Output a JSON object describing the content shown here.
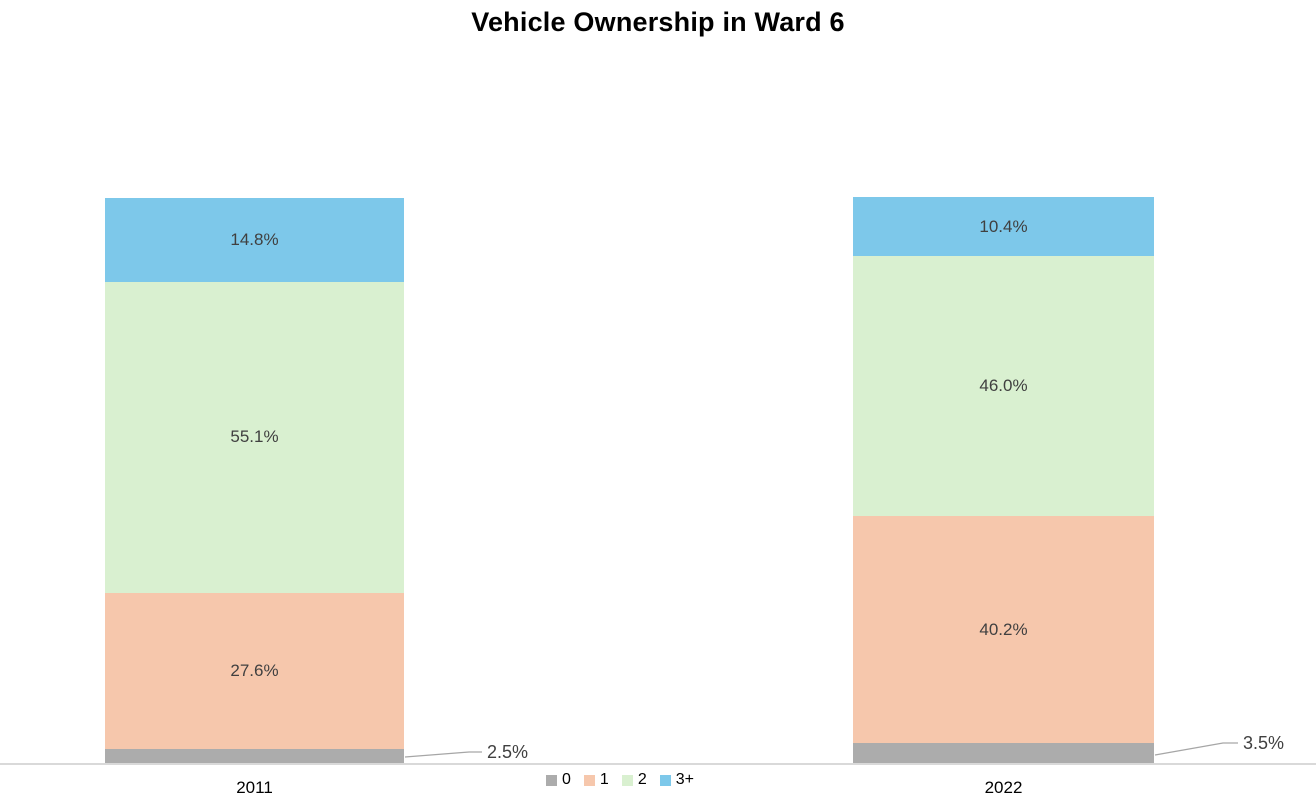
{
  "chart_data": {
    "type": "bar",
    "stacked": true,
    "title": "Vehicle Ownership in Ward 6",
    "categories": [
      "2011",
      "2022"
    ],
    "series": [
      {
        "name": "0",
        "color": "#ACACAC",
        "values": [
          2.5,
          3.5
        ],
        "labels": [
          "2.5%",
          "3.5%"
        ],
        "label_placement": "callout"
      },
      {
        "name": "1",
        "color": "#F6C7AC",
        "values": [
          27.6,
          40.2
        ],
        "labels": [
          "27.6%",
          "40.2%"
        ],
        "label_placement": "inside"
      },
      {
        "name": "2",
        "color": "#D9F0D0",
        "values": [
          55.1,
          46.0
        ],
        "labels": [
          "55.1%",
          "46.0%"
        ],
        "label_placement": "inside"
      },
      {
        "name": "3+",
        "color": "#7DC8EA",
        "values": [
          14.8,
          10.4
        ],
        "labels": [
          "14.8%",
          "10.4%"
        ],
        "label_placement": "inside"
      }
    ],
    "xlabel": "",
    "ylabel": "",
    "ylim": [
      0,
      100
    ],
    "value_format": "percent",
    "grid": false,
    "legend_position": "bottom-center",
    "legend_entries": [
      "0",
      "1",
      "2",
      "3+"
    ],
    "label_color": "#404040",
    "axis_line_color": "#D9D9D9",
    "leader_line_color": "#A6A6A6",
    "title_color": "#000000",
    "background_color": "#FFFFFF"
  }
}
